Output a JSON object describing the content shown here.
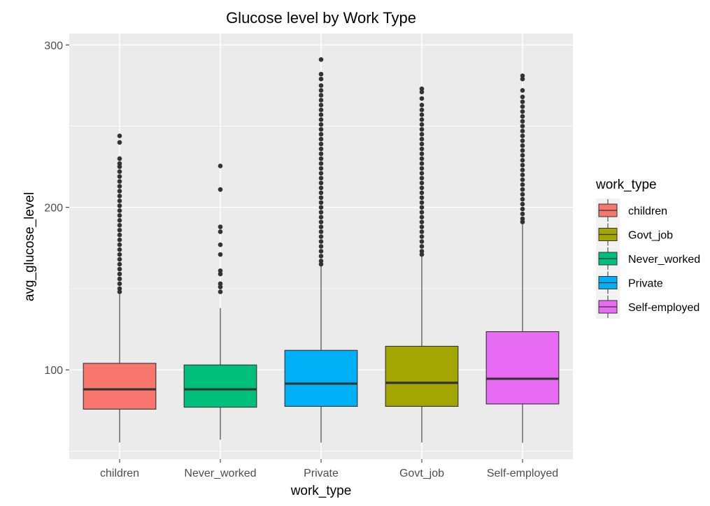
{
  "chart_data": {
    "type": "box",
    "title": "Glucose level by Work Type",
    "xlabel": "work_type",
    "ylabel": "avg_glucose_level",
    "ylim": [
      45,
      307
    ],
    "y_ticks": [
      100,
      200,
      300
    ],
    "grid": true,
    "legend": {
      "title": "work_type",
      "placement": "right",
      "entries": [
        "children",
        "Govt_job",
        "Never_worked",
        "Private",
        "Self-employed"
      ]
    },
    "colors": {
      "children": "#f8766d",
      "Govt_job": "#a3a500",
      "Never_worked": "#00bf7d",
      "Private": "#00b0f6",
      "Self-employed": "#e76bf3"
    },
    "categories": [
      "children",
      "Never_worked",
      "Private",
      "Govt_job",
      "Self-employed"
    ],
    "boxes": [
      {
        "category": "children",
        "min": 55.3,
        "q1": 75.8,
        "median": 88.0,
        "q3": 104.0,
        "whisker_high": 146.5,
        "outliers": [
          244,
          240,
          230,
          227,
          225,
          222,
          219,
          216,
          213,
          210,
          207,
          204,
          201,
          198,
          195,
          192,
          189,
          186,
          183,
          180,
          177,
          174,
          171,
          168,
          165,
          162,
          159,
          156,
          153,
          150,
          148
        ]
      },
      {
        "category": "Never_worked",
        "min": 57.0,
        "q1": 77.0,
        "median": 88.0,
        "q3": 103.0,
        "whisker_high": 138.0,
        "outliers": [
          225.5,
          211,
          188,
          185,
          177,
          171,
          161,
          159,
          153,
          151,
          148
        ]
      },
      {
        "category": "Private",
        "min": 55.2,
        "q1": 77.5,
        "median": 91.5,
        "q3": 112.0,
        "whisker_high": 164.0,
        "outliers": [
          291,
          282,
          279,
          275,
          272,
          269,
          266,
          263,
          260,
          257,
          254,
          251,
          248,
          245,
          242,
          239,
          236,
          233,
          230,
          227,
          224,
          221,
          218,
          215,
          212,
          209,
          206,
          203,
          200,
          197,
          194,
          191,
          188,
          185,
          182,
          179,
          176,
          173,
          170,
          167,
          165
        ]
      },
      {
        "category": "Govt_job",
        "min": 55.3,
        "q1": 77.5,
        "median": 92.0,
        "q3": 114.5,
        "whisker_high": 170.0,
        "outliers": [
          273,
          271,
          267,
          263,
          260,
          257,
          254,
          251,
          248,
          245,
          242,
          239,
          236,
          233,
          230,
          227,
          224,
          221,
          218,
          215,
          212,
          209,
          206,
          203,
          200,
          197,
          194,
          191,
          188,
          185,
          182,
          179,
          176,
          173,
          171
        ]
      },
      {
        "category": "Self-employed",
        "min": 55.1,
        "q1": 79.0,
        "median": 94.5,
        "q3": 123.5,
        "whisker_high": 189.5,
        "outliers": [
          281,
          279,
          272,
          268,
          265,
          262,
          259,
          256,
          253,
          250,
          247,
          244,
          241,
          238,
          235,
          232,
          229,
          226,
          223,
          220,
          217,
          214,
          211,
          208,
          205,
          202,
          199,
          196,
          193,
          191
        ]
      }
    ]
  }
}
